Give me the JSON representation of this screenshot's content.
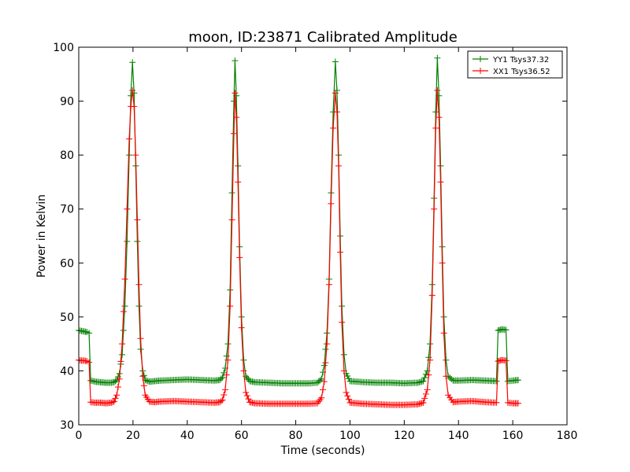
{
  "chart_data": {
    "type": "line",
    "title": "moon, ID:23871 Calibrated Amplitude",
    "xlabel": "Time (seconds)",
    "ylabel": "Power in Kelvin",
    "xlim": [
      0,
      180
    ],
    "ylim": [
      30,
      100
    ],
    "xticks": [
      "0",
      "20",
      "40",
      "60",
      "80",
      "100",
      "120",
      "140",
      "160",
      "180"
    ],
    "yticks": [
      "30",
      "40",
      "50",
      "60",
      "70",
      "80",
      "90",
      "100"
    ],
    "grid": false,
    "legend_position": "top-right",
    "series": [
      {
        "name": "YY1 Tsys37.32",
        "color": "#008000",
        "marker": "+",
        "points": [
          [
            0,
            47.5
          ],
          [
            1,
            47.4
          ],
          [
            2,
            47.3
          ],
          [
            3,
            47.2
          ],
          [
            3.8,
            47.0
          ],
          [
            4.4,
            38.2
          ],
          [
            6,
            38.0
          ],
          [
            8,
            37.9
          ],
          [
            10,
            37.8
          ],
          [
            12,
            37.8
          ],
          [
            13,
            37.9
          ],
          [
            14,
            38.3
          ],
          [
            15,
            39.5
          ],
          [
            16,
            43
          ],
          [
            17,
            52
          ],
          [
            17.8,
            64
          ],
          [
            18.6,
            80
          ],
          [
            19.2,
            91
          ],
          [
            19.8,
            97.2
          ],
          [
            20.4,
            91.5
          ],
          [
            21,
            78
          ],
          [
            21.6,
            64
          ],
          [
            22.2,
            52
          ],
          [
            22.8,
            44
          ],
          [
            23.6,
            40
          ],
          [
            24.5,
            38.3
          ],
          [
            26,
            38.0
          ],
          [
            28,
            38.1
          ],
          [
            30,
            38.2
          ],
          [
            35,
            38.3
          ],
          [
            40,
            38.4
          ],
          [
            45,
            38.3
          ],
          [
            50,
            38.2
          ],
          [
            52,
            38.3
          ],
          [
            53,
            38.8
          ],
          [
            54,
            40.5
          ],
          [
            55,
            45
          ],
          [
            55.8,
            55
          ],
          [
            56.5,
            73
          ],
          [
            57.2,
            90
          ],
          [
            57.6,
            97.5
          ],
          [
            58.1,
            91
          ],
          [
            58.7,
            78
          ],
          [
            59.3,
            63
          ],
          [
            60,
            50
          ],
          [
            60.8,
            42
          ],
          [
            61.6,
            39
          ],
          [
            63,
            38.1
          ],
          [
            65,
            37.9
          ],
          [
            70,
            37.8
          ],
          [
            75,
            37.7
          ],
          [
            80,
            37.7
          ],
          [
            85,
            37.7
          ],
          [
            88,
            37.8
          ],
          [
            89.5,
            38.5
          ],
          [
            90.5,
            41
          ],
          [
            91.5,
            47
          ],
          [
            92.3,
            57
          ],
          [
            93,
            73
          ],
          [
            93.8,
            88
          ],
          [
            94.6,
            97.3
          ],
          [
            95.2,
            92
          ],
          [
            95.8,
            80
          ],
          [
            96.4,
            65
          ],
          [
            97,
            52
          ],
          [
            97.8,
            43
          ],
          [
            98.6,
            39.5
          ],
          [
            100,
            38.1
          ],
          [
            105,
            37.9
          ],
          [
            110,
            37.8
          ],
          [
            115,
            37.8
          ],
          [
            120,
            37.7
          ],
          [
            125,
            37.8
          ],
          [
            127,
            38.1
          ],
          [
            128.5,
            40
          ],
          [
            129.5,
            45
          ],
          [
            130.3,
            56
          ],
          [
            131,
            72
          ],
          [
            131.6,
            88
          ],
          [
            132.2,
            98
          ],
          [
            132.8,
            91
          ],
          [
            133.4,
            78
          ],
          [
            134,
            63
          ],
          [
            134.6,
            50
          ],
          [
            135.4,
            42
          ],
          [
            136.2,
            39
          ],
          [
            138,
            38.2
          ],
          [
            140,
            38.2
          ],
          [
            145,
            38.3
          ],
          [
            150,
            38.2
          ],
          [
            154,
            38.1
          ],
          [
            154.6,
            47.5
          ],
          [
            156,
            47.7
          ],
          [
            157.5,
            47.6
          ],
          [
            158.2,
            38.1
          ],
          [
            160,
            38.2
          ],
          [
            162,
            38.3
          ]
        ]
      },
      {
        "name": "XX1 Tsys36.52",
        "color": "#ff0000",
        "marker": "+",
        "points": [
          [
            0,
            42.0
          ],
          [
            1,
            41.9
          ],
          [
            2,
            41.9
          ],
          [
            3,
            41.8
          ],
          [
            3.8,
            41.6
          ],
          [
            4.4,
            34.2
          ],
          [
            6,
            34.1
          ],
          [
            8,
            34.1
          ],
          [
            10,
            34.0
          ],
          [
            12,
            34.1
          ],
          [
            13,
            34.3
          ],
          [
            14,
            35.5
          ],
          [
            15,
            38.5
          ],
          [
            16,
            45
          ],
          [
            17,
            57
          ],
          [
            17.8,
            70
          ],
          [
            18.6,
            83
          ],
          [
            19.2,
            89
          ],
          [
            19.8,
            92
          ],
          [
            20.4,
            89
          ],
          [
            21,
            80
          ],
          [
            21.6,
            68
          ],
          [
            22.2,
            56
          ],
          [
            22.8,
            46
          ],
          [
            23.6,
            39
          ],
          [
            24.5,
            35.5
          ],
          [
            26,
            34.3
          ],
          [
            28,
            34.2
          ],
          [
            30,
            34.3
          ],
          [
            35,
            34.4
          ],
          [
            40,
            34.3
          ],
          [
            45,
            34.2
          ],
          [
            50,
            34.1
          ],
          [
            52,
            34.2
          ],
          [
            53,
            34.6
          ],
          [
            54,
            36.5
          ],
          [
            55,
            42
          ],
          [
            55.8,
            52
          ],
          [
            56.5,
            68
          ],
          [
            57.2,
            84
          ],
          [
            57.6,
            91.5
          ],
          [
            58.1,
            87
          ],
          [
            58.7,
            75
          ],
          [
            59.3,
            61
          ],
          [
            60,
            48
          ],
          [
            60.8,
            40
          ],
          [
            61.6,
            36
          ],
          [
            63,
            34.2
          ],
          [
            65,
            34.0
          ],
          [
            70,
            33.9
          ],
          [
            75,
            33.9
          ],
          [
            80,
            33.9
          ],
          [
            85,
            33.9
          ],
          [
            88,
            34.0
          ],
          [
            89.5,
            35
          ],
          [
            90.5,
            38
          ],
          [
            91.5,
            45
          ],
          [
            92.3,
            56
          ],
          [
            93,
            71
          ],
          [
            93.8,
            85
          ],
          [
            94.6,
            91.5
          ],
          [
            95.2,
            88
          ],
          [
            95.8,
            78
          ],
          [
            96.4,
            62
          ],
          [
            97,
            49
          ],
          [
            97.8,
            40
          ],
          [
            98.6,
            36
          ],
          [
            100,
            34.1
          ],
          [
            105,
            33.9
          ],
          [
            110,
            33.8
          ],
          [
            115,
            33.7
          ],
          [
            120,
            33.7
          ],
          [
            125,
            33.8
          ],
          [
            127,
            34.1
          ],
          [
            128.5,
            36.5
          ],
          [
            129.5,
            42
          ],
          [
            130.3,
            54
          ],
          [
            131,
            70
          ],
          [
            131.6,
            85
          ],
          [
            132.2,
            92
          ],
          [
            132.8,
            87
          ],
          [
            133.4,
            75
          ],
          [
            134,
            60
          ],
          [
            134.6,
            47
          ],
          [
            135.4,
            39
          ],
          [
            136.2,
            35.5
          ],
          [
            138,
            34.2
          ],
          [
            140,
            34.3
          ],
          [
            145,
            34.4
          ],
          [
            150,
            34.2
          ],
          [
            154,
            34.1
          ],
          [
            154.6,
            41.8
          ],
          [
            156,
            42.0
          ],
          [
            157.5,
            41.9
          ],
          [
            158.2,
            34.1
          ],
          [
            160,
            34.0
          ],
          [
            162,
            34.0
          ]
        ]
      }
    ]
  }
}
